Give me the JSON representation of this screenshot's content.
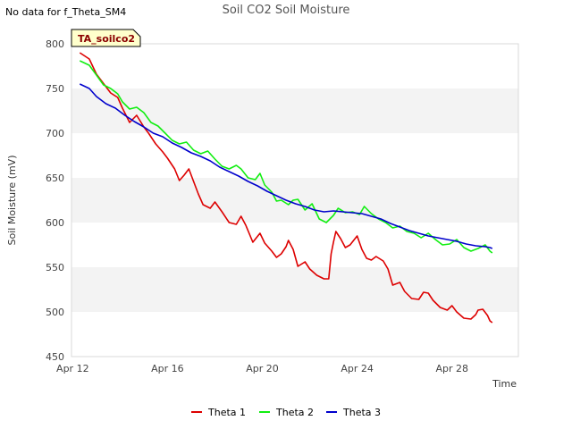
{
  "header": {
    "nodata_text": "No data for f_Theta_SM4"
  },
  "chart_data": {
    "type": "line",
    "title": "Soil CO2 Soil Moisture",
    "xlabel": "Time",
    "ylabel": "Soil Moisture (mV)",
    "tag": "TA_soilco2",
    "x_unit": "day of April",
    "xlim": [
      11.95,
      30.8
    ],
    "ylim": [
      450,
      800
    ],
    "x_ticks": [
      12,
      16,
      20,
      24,
      28
    ],
    "x_tick_labels": [
      "Apr 12",
      "Apr 16",
      "Apr 20",
      "Apr 24",
      "Apr 28"
    ],
    "y_ticks": [
      450,
      500,
      550,
      600,
      650,
      700,
      750,
      800
    ],
    "y_tick_labels": [
      "450",
      "500",
      "550",
      "600",
      "650",
      "700",
      "750",
      "800"
    ],
    "grid": "horizontal alternating bands",
    "legend_position": "bottom-center",
    "series": [
      {
        "name": "Theta 1",
        "color": "#dd0000",
        "points": [
          [
            12.3,
            790
          ],
          [
            12.7,
            783
          ],
          [
            13.0,
            766
          ],
          [
            13.4,
            752
          ],
          [
            13.6,
            745
          ],
          [
            13.9,
            740
          ],
          [
            14.1,
            728
          ],
          [
            14.4,
            712
          ],
          [
            14.7,
            720
          ],
          [
            15.0,
            707
          ],
          [
            15.2,
            700
          ],
          [
            15.5,
            688
          ],
          [
            15.8,
            679
          ],
          [
            16.0,
            672
          ],
          [
            16.3,
            660
          ],
          [
            16.5,
            647
          ],
          [
            16.7,
            653
          ],
          [
            16.9,
            660
          ],
          [
            17.1,
            646
          ],
          [
            17.3,
            632
          ],
          [
            17.5,
            620
          ],
          [
            17.8,
            616
          ],
          [
            18.0,
            623
          ],
          [
            18.3,
            612
          ],
          [
            18.6,
            600
          ],
          [
            18.9,
            598
          ],
          [
            19.1,
            607
          ],
          [
            19.3,
            597
          ],
          [
            19.6,
            578
          ],
          [
            19.9,
            588
          ],
          [
            20.1,
            577
          ],
          [
            20.4,
            568
          ],
          [
            20.6,
            561
          ],
          [
            20.8,
            565
          ],
          [
            21.0,
            573
          ],
          [
            21.1,
            580
          ],
          [
            21.3,
            570
          ],
          [
            21.5,
            551
          ],
          [
            21.8,
            556
          ],
          [
            22.0,
            548
          ],
          [
            22.3,
            541
          ],
          [
            22.6,
            537
          ],
          [
            22.8,
            537
          ],
          [
            22.9,
            565
          ],
          [
            23.0,
            578
          ],
          [
            23.1,
            590
          ],
          [
            23.3,
            582
          ],
          [
            23.5,
            572
          ],
          [
            23.7,
            575
          ],
          [
            24.0,
            585
          ],
          [
            24.2,
            570
          ],
          [
            24.4,
            560
          ],
          [
            24.6,
            558
          ],
          [
            24.8,
            562
          ],
          [
            25.1,
            557
          ],
          [
            25.3,
            548
          ],
          [
            25.5,
            530
          ],
          [
            25.8,
            533
          ],
          [
            26.0,
            523
          ],
          [
            26.3,
            515
          ],
          [
            26.6,
            514
          ],
          [
            26.8,
            522
          ],
          [
            27.0,
            521
          ],
          [
            27.2,
            513
          ],
          [
            27.5,
            505
          ],
          [
            27.8,
            502
          ],
          [
            28.0,
            507
          ],
          [
            28.2,
            500
          ],
          [
            28.5,
            493
          ],
          [
            28.8,
            492
          ],
          [
            29.0,
            497
          ],
          [
            29.1,
            502
          ],
          [
            29.3,
            503
          ],
          [
            29.5,
            496
          ],
          [
            29.6,
            490
          ],
          [
            29.7,
            488
          ]
        ]
      },
      {
        "name": "Theta 2",
        "color": "#11ee11",
        "points": [
          [
            12.3,
            781
          ],
          [
            12.7,
            776
          ],
          [
            13.0,
            765
          ],
          [
            13.3,
            754
          ],
          [
            13.6,
            750
          ],
          [
            13.9,
            744
          ],
          [
            14.1,
            735
          ],
          [
            14.4,
            727
          ],
          [
            14.7,
            729
          ],
          [
            15.0,
            723
          ],
          [
            15.3,
            712
          ],
          [
            15.6,
            708
          ],
          [
            15.9,
            700
          ],
          [
            16.2,
            692
          ],
          [
            16.5,
            688
          ],
          [
            16.8,
            690
          ],
          [
            17.1,
            681
          ],
          [
            17.4,
            677
          ],
          [
            17.7,
            680
          ],
          [
            18.0,
            671
          ],
          [
            18.3,
            663
          ],
          [
            18.6,
            660
          ],
          [
            18.9,
            664
          ],
          [
            19.1,
            660
          ],
          [
            19.4,
            650
          ],
          [
            19.7,
            648
          ],
          [
            19.9,
            655
          ],
          [
            20.1,
            642
          ],
          [
            20.4,
            634
          ],
          [
            20.6,
            624
          ],
          [
            20.8,
            625
          ],
          [
            21.1,
            620
          ],
          [
            21.3,
            625
          ],
          [
            21.5,
            626
          ],
          [
            21.8,
            614
          ],
          [
            22.1,
            621
          ],
          [
            22.4,
            604
          ],
          [
            22.7,
            600
          ],
          [
            23.0,
            608
          ],
          [
            23.2,
            616
          ],
          [
            23.5,
            611
          ],
          [
            23.8,
            612
          ],
          [
            24.1,
            609
          ],
          [
            24.3,
            618
          ],
          [
            24.6,
            610
          ],
          [
            24.9,
            604
          ],
          [
            25.2,
            600
          ],
          [
            25.5,
            594
          ],
          [
            25.8,
            596
          ],
          [
            26.1,
            590
          ],
          [
            26.4,
            588
          ],
          [
            26.7,
            583
          ],
          [
            27.0,
            588
          ],
          [
            27.3,
            581
          ],
          [
            27.6,
            575
          ],
          [
            27.9,
            576
          ],
          [
            28.2,
            581
          ],
          [
            28.5,
            572
          ],
          [
            28.8,
            568
          ],
          [
            29.1,
            571
          ],
          [
            29.4,
            575
          ],
          [
            29.6,
            568
          ],
          [
            29.7,
            566
          ]
        ]
      },
      {
        "name": "Theta 3",
        "color": "#0000cc",
        "points": [
          [
            12.3,
            755
          ],
          [
            12.7,
            750
          ],
          [
            13.0,
            741
          ],
          [
            13.4,
            733
          ],
          [
            13.8,
            728
          ],
          [
            14.2,
            720
          ],
          [
            14.6,
            713
          ],
          [
            15.0,
            707
          ],
          [
            15.4,
            700
          ],
          [
            15.8,
            696
          ],
          [
            16.2,
            689
          ],
          [
            16.6,
            684
          ],
          [
            17.0,
            678
          ],
          [
            17.4,
            674
          ],
          [
            17.8,
            669
          ],
          [
            18.2,
            662
          ],
          [
            18.6,
            657
          ],
          [
            19.0,
            652
          ],
          [
            19.4,
            646
          ],
          [
            19.8,
            641
          ],
          [
            20.2,
            635
          ],
          [
            20.6,
            630
          ],
          [
            21.0,
            625
          ],
          [
            21.4,
            621
          ],
          [
            21.8,
            618
          ],
          [
            22.2,
            614
          ],
          [
            22.6,
            612
          ],
          [
            23.0,
            613
          ],
          [
            23.4,
            612
          ],
          [
            23.8,
            611
          ],
          [
            24.2,
            610
          ],
          [
            24.6,
            607
          ],
          [
            25.0,
            604
          ],
          [
            25.4,
            599
          ],
          [
            25.8,
            595
          ],
          [
            26.2,
            591
          ],
          [
            26.6,
            588
          ],
          [
            27.0,
            585
          ],
          [
            27.4,
            583
          ],
          [
            27.8,
            581
          ],
          [
            28.2,
            579
          ],
          [
            28.6,
            576
          ],
          [
            29.0,
            574
          ],
          [
            29.4,
            573
          ],
          [
            29.6,
            572
          ],
          [
            29.7,
            571
          ]
        ]
      }
    ]
  }
}
